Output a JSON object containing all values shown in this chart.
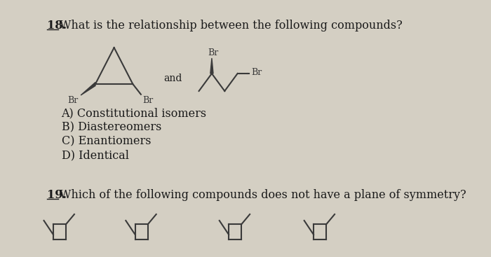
{
  "bg_color": "#d4cfc3",
  "title_num": "18.",
  "title_text": "What is the relationship between the following compounds?",
  "options": [
    "A) Constitutional isomers",
    "B) Diastereomers",
    "C) Enantiomers",
    "D) Identical"
  ],
  "q19_num": "19.",
  "q19_text": "Which of the following compounds does not have a plane of symmetry?",
  "and_text": "and",
  "structure_color": "#3a3a3a",
  "text_color": "#1a1a1a",
  "title_fontsize": 11.5,
  "option_fontsize": 11.5,
  "q19_fontsize": 11.5
}
